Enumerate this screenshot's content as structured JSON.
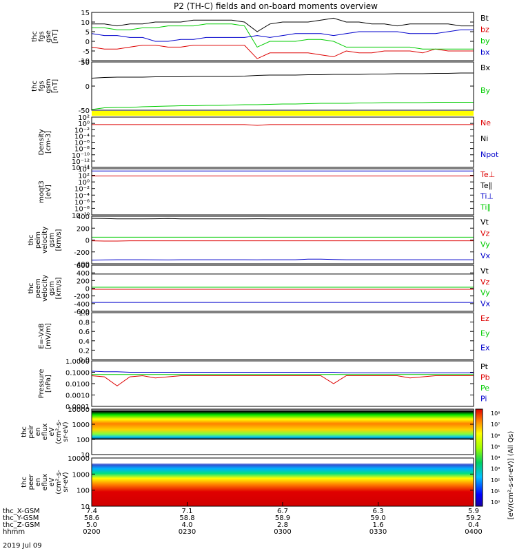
{
  "title": "P2 (TH-C) fields and on-board moments overview",
  "colors": {
    "black": "#000000",
    "red": "#dd0000",
    "green": "#00cc00",
    "blue": "#0000cc",
    "yellow": "#ffff00",
    "bar_bg": "#ffff00"
  },
  "chart_data": [
    {
      "type": "line",
      "name": "fgs_gse",
      "ylabel_lines": [
        "thc",
        "fgs",
        "gse",
        "[nT]"
      ],
      "ylim": [
        -10,
        15
      ],
      "ticks": [
        "15",
        "10",
        "5",
        "0",
        "-5",
        "-10"
      ],
      "legend": [
        {
          "label": "Bt",
          "color": "#000000"
        },
        {
          "label": "bz",
          "color": "#dd0000"
        },
        {
          "label": "by",
          "color": "#00cc00"
        },
        {
          "label": "bx",
          "color": "#0000cc"
        }
      ],
      "series": [
        {
          "name": "Bt",
          "values": [
            9,
            9,
            8,
            9,
            9,
            10,
            10,
            10,
            11,
            11,
            11,
            11,
            10,
            5,
            9,
            10,
            10,
            10,
            11,
            12,
            10,
            10,
            9,
            9,
            8,
            9,
            9,
            9,
            9,
            8,
            8
          ]
        },
        {
          "name": "bz",
          "values": [
            -3,
            -4,
            -4,
            -3,
            -2,
            -2,
            -3,
            -3,
            -2,
            -2,
            -2,
            -2,
            -2,
            -9,
            -6,
            -6,
            -6,
            -6,
            -7,
            -8,
            -5,
            -6,
            -6,
            -5,
            -5,
            -5,
            -6,
            -4,
            -5,
            -5,
            -5
          ]
        },
        {
          "name": "by",
          "values": [
            7,
            7,
            6,
            6,
            7,
            7,
            8,
            8,
            8,
            9,
            9,
            9,
            8,
            -3,
            0,
            0,
            0,
            1,
            1,
            0,
            -3,
            -3,
            -3,
            -3,
            -3,
            -3,
            -4,
            -4,
            -4,
            -4,
            -4
          ]
        },
        {
          "name": "bx",
          "values": [
            4,
            3,
            3,
            2,
            2,
            0,
            0,
            1,
            1,
            2,
            2,
            2,
            2,
            3,
            2,
            3,
            4,
            4,
            4,
            3,
            4,
            5,
            5,
            5,
            5,
            4,
            4,
            4,
            5,
            6,
            6
          ]
        }
      ]
    },
    {
      "type": "line",
      "name": "fgs_gsm",
      "ylabel_lines": [
        "thc",
        "fgs",
        "gsm",
        "[nT]"
      ],
      "ylim": [
        -80,
        60
      ],
      "ticks": [
        "50",
        "0",
        "-50"
      ],
      "legend": [
        {
          "label": "Bx",
          "color": "#000000"
        },
        {
          "label": "By",
          "color": "#00cc00"
        }
      ],
      "series": [
        {
          "name": "Bx",
          "values": [
            13,
            15,
            16,
            16,
            16,
            17,
            17,
            17,
            18,
            18,
            18,
            18,
            19,
            21,
            22,
            22,
            22,
            23,
            23,
            24,
            24,
            24,
            25,
            25,
            26,
            26,
            26,
            27,
            27,
            28,
            28
          ]
        },
        {
          "name": "By",
          "values": [
            -78,
            -73,
            -72,
            -72,
            -70,
            -69,
            -68,
            -67,
            -67,
            -66,
            -66,
            -65,
            -64,
            -64,
            -63,
            -62,
            -62,
            -61,
            -60,
            -60,
            -60,
            -59,
            -59,
            -58,
            -58,
            -58,
            -58,
            -57,
            -57,
            -57,
            -57
          ]
        }
      ]
    },
    {
      "type": "line",
      "name": "density",
      "ylabel_lines": [
        "Density",
        "[cm-3]"
      ],
      "ylim": [
        -16,
        4
      ],
      "log": true,
      "ticks": [
        "10²",
        "10⁰",
        "10⁻²",
        "10⁻⁴",
        "10⁻⁶",
        "10⁻⁸",
        "10⁻¹⁰",
        "10⁻¹²",
        "10⁻¹⁴"
      ],
      "legend": [
        {
          "label": "Ne",
          "color": "#dd0000"
        },
        {
          "label": "Ni",
          "color": "#000000"
        },
        {
          "label": "Npot",
          "color": "#0000cc"
        }
      ],
      "series": [
        {
          "name": "Ne",
          "log10_values": [
            1.0,
            1.0,
            1.0,
            1.0,
            1.0,
            1.0,
            1.0,
            1.0,
            1.0,
            1.0,
            1.0,
            1.0,
            1.0,
            0.7,
            1.0,
            1.0,
            1.0,
            1.0,
            1.0,
            1.0,
            1.0,
            1.0,
            1.0,
            1.0,
            1.0,
            1.0,
            1.0,
            1.0,
            1.0,
            1.0,
            1.0
          ]
        }
      ]
    },
    {
      "type": "line",
      "name": "moqt3",
      "ylabel_lines": [
        "moqt3",
        "[eV]"
      ],
      "ylim": [
        -12,
        4
      ],
      "log": true,
      "ticks": [
        "10⁴",
        "10²",
        "10⁰",
        "10⁻²",
        "10⁻⁴",
        "10⁻⁶",
        "10⁻⁸",
        "10⁻¹⁰"
      ],
      "legend": [
        {
          "label": "Te⊥",
          "color": "#dd0000"
        },
        {
          "label": "Te∥",
          "color": "#000000"
        },
        {
          "label": "Ti⊥",
          "color": "#0000cc"
        },
        {
          "label": "Ti∥",
          "color": "#00cc00"
        }
      ],
      "series": [
        {
          "name": "Ti",
          "log10_values": [
            3.2,
            3.2,
            3.2,
            3.2,
            3.2,
            3.2,
            3.2,
            3.2,
            3.2,
            3.2,
            3.2,
            3.2,
            3.2,
            3.2,
            3.2,
            3.2,
            3.2,
            3.2,
            3.2,
            3.2,
            3.2,
            3.2,
            3.2,
            3.2,
            3.2,
            3.2,
            3.2,
            3.2,
            3.2,
            3.2,
            3.2
          ]
        },
        {
          "name": "Te",
          "log10_values": [
            1.5,
            1.5,
            1.5,
            1.5,
            1.5,
            1.5,
            1.5,
            1.5,
            1.5,
            1.5,
            1.5,
            1.5,
            1.5,
            1.5,
            1.5,
            1.5,
            1.5,
            1.5,
            1.5,
            1.5,
            1.5,
            1.5,
            1.5,
            1.5,
            1.5,
            1.5,
            1.5,
            1.5,
            1.5,
            1.5,
            1.5
          ]
        }
      ]
    },
    {
      "type": "line",
      "name": "peim_velocity",
      "ylabel_lines": [
        "thc",
        "peim",
        "velocity",
        "gsm",
        "[km/s]"
      ],
      "ylim": [
        -480,
        450
      ],
      "ticks": [
        "400",
        "200",
        "0",
        "-200",
        "-400"
      ],
      "legend": [
        {
          "label": "Vt",
          "color": "#000000"
        },
        {
          "label": "Vz",
          "color": "#dd0000"
        },
        {
          "label": "Vy",
          "color": "#00cc00"
        },
        {
          "label": "Vx",
          "color": "#0000cc"
        }
      ],
      "series": [
        {
          "name": "Vt",
          "values": [
            410,
            405,
            400,
            400,
            400,
            402,
            405,
            400,
            400,
            400,
            400,
            400,
            400,
            402,
            400,
            400,
            400,
            400,
            400,
            400,
            400,
            400,
            400,
            400,
            400,
            400,
            400,
            400,
            400,
            400,
            400
          ]
        },
        {
          "name": "Vz",
          "values": [
            -30,
            -35,
            -35,
            -30,
            -30,
            -30,
            -30,
            -30,
            -30,
            -30,
            -30,
            -30,
            -30,
            -30,
            -30,
            -30,
            -30,
            -30,
            -30,
            -30,
            -30,
            -30,
            -30,
            -30,
            -30,
            -30,
            -30,
            -30,
            -30,
            -30,
            -30
          ]
        },
        {
          "name": "Vy",
          "values": [
            40,
            40,
            40,
            40,
            40,
            40,
            40,
            40,
            40,
            40,
            40,
            40,
            40,
            40,
            40,
            40,
            40,
            40,
            40,
            40,
            40,
            40,
            40,
            40,
            40,
            40,
            40,
            40,
            40,
            40,
            40
          ]
        },
        {
          "name": "Vx",
          "values": [
            -410,
            -405,
            -400,
            -400,
            -400,
            -402,
            -405,
            -400,
            -400,
            -400,
            -400,
            -400,
            -400,
            -402,
            -400,
            -400,
            -400,
            -390,
            -390,
            -395,
            -400,
            -400,
            -400,
            -400,
            -400,
            -400,
            -400,
            -400,
            -400,
            -400,
            -400
          ]
        }
      ]
    },
    {
      "type": "line",
      "name": "peem_velocity",
      "ylabel_lines": [
        "thc",
        "peem",
        "velocity",
        "gsm",
        "[km/s]"
      ],
      "ylim": [
        -650,
        650
      ],
      "ticks": [
        "600",
        "400",
        "200",
        "0",
        "-200",
        "-400",
        "-600"
      ],
      "legend": [
        {
          "label": "Vt",
          "color": "#000000"
        },
        {
          "label": "Vz",
          "color": "#dd0000"
        },
        {
          "label": "Vy",
          "color": "#00cc00"
        },
        {
          "label": "Vx",
          "color": "#0000cc"
        }
      ],
      "series": [
        {
          "name": "Vt",
          "values": [
            400,
            400,
            400,
            400,
            400,
            400,
            400,
            400,
            400,
            400,
            400,
            400,
            400,
            400,
            400,
            400,
            400,
            400,
            400,
            400,
            400,
            400,
            400,
            400,
            400,
            400,
            400,
            400,
            400,
            400,
            400
          ]
        },
        {
          "name": "Vz",
          "values": [
            -30,
            -30,
            -30,
            -30,
            -30,
            -30,
            -30,
            -30,
            -30,
            -30,
            -30,
            -30,
            -30,
            -30,
            -30,
            -30,
            -30,
            -30,
            -30,
            -30,
            -30,
            -30,
            -30,
            -30,
            -30,
            -30,
            -30,
            -30,
            -30,
            -30,
            -30
          ]
        },
        {
          "name": "Vy",
          "values": [
            30,
            30,
            30,
            30,
            30,
            30,
            30,
            30,
            30,
            30,
            30,
            30,
            30,
            30,
            30,
            30,
            30,
            30,
            30,
            30,
            30,
            30,
            30,
            30,
            30,
            30,
            30,
            30,
            30,
            30,
            30
          ]
        },
        {
          "name": "Vx",
          "values": [
            -400,
            -400,
            -400,
            -400,
            -400,
            -400,
            -400,
            -400,
            -400,
            -400,
            -400,
            -400,
            -400,
            -400,
            -400,
            -400,
            -400,
            -400,
            -400,
            -400,
            -400,
            -400,
            -400,
            -400,
            -400,
            -400,
            -400,
            -400,
            -400,
            -400,
            -400
          ]
        }
      ]
    },
    {
      "type": "line",
      "name": "efield",
      "ylabel_lines": [
        "E=-VxB",
        "[mV/m]"
      ],
      "ylim": [
        0.0,
        1.0
      ],
      "ticks": [
        "1.0",
        "0.8",
        "0.6",
        "0.4",
        "0.2",
        "0.0"
      ],
      "legend": [
        {
          "label": "Ez",
          "color": "#dd0000"
        },
        {
          "label": "Ey",
          "color": "#00cc00"
        },
        {
          "label": "Ex",
          "color": "#0000cc"
        }
      ],
      "series": []
    },
    {
      "type": "line",
      "name": "pressure",
      "ylabel_lines": [
        "Pressure",
        "[nPa]"
      ],
      "ylim": [
        -4,
        0
      ],
      "log": true,
      "ticks": [
        "1.0000",
        "0.1000",
        "0.0100",
        "0.0010",
        "0.0001"
      ],
      "legend": [
        {
          "label": "Pt",
          "color": "#000000"
        },
        {
          "label": "Pb",
          "color": "#dd0000"
        },
        {
          "label": "Pe",
          "color": "#00cc00"
        },
        {
          "label": "Pi",
          "color": "#0000cc"
        }
      ],
      "series": [
        {
          "name": "Pi",
          "log10_values": [
            -0.9,
            -0.95,
            -0.95,
            -1.0,
            -1.0,
            -1.0,
            -1.0,
            -1.0,
            -1.0,
            -1.0,
            -1.0,
            -1.0,
            -1.0,
            -1.0,
            -1.0,
            -1.0,
            -1.0,
            -1.0,
            -1.0,
            -1.0,
            -1.05,
            -1.05,
            -1.05,
            -1.05,
            -1.05,
            -1.05,
            -1.05,
            -1.05,
            -1.05,
            -1.05,
            -1.05
          ]
        },
        {
          "name": "Pe",
          "log10_values": [
            -1.2,
            -1.2,
            -1.2,
            -1.2,
            -1.2,
            -1.2,
            -1.2,
            -1.2,
            -1.2,
            -1.2,
            -1.2,
            -1.2,
            -1.2,
            -1.2,
            -1.2,
            -1.2,
            -1.2,
            -1.2,
            -1.2,
            -1.2,
            -1.2,
            -1.2,
            -1.2,
            -1.2,
            -1.2,
            -1.2,
            -1.2,
            -1.2,
            -1.2,
            -1.2,
            -1.2
          ]
        },
        {
          "name": "Pb",
          "log10_values": [
            -1.3,
            -1.4,
            -2.2,
            -1.4,
            -1.3,
            -1.5,
            -1.4,
            -1.3,
            -1.3,
            -1.3,
            -1.3,
            -1.3,
            -1.3,
            -1.3,
            -1.3,
            -1.3,
            -1.3,
            -1.3,
            -1.3,
            -2.0,
            -1.3,
            -1.3,
            -1.3,
            -1.3,
            -1.3,
            -1.5,
            -1.4,
            -1.3,
            -1.3,
            -1.3,
            -1.3
          ]
        }
      ]
    },
    {
      "type": "heatmap",
      "name": "peir_en_eflux",
      "ylabel_lines": [
        "thc",
        "peir",
        "en",
        "eflux",
        "eV",
        "(cm²-s-",
        "sr-eV)"
      ],
      "ylim": [
        5,
        15000
      ],
      "log": true,
      "ticks": [
        "10000",
        "1000",
        "100",
        "10"
      ],
      "band": {
        "low": 80,
        "high": 5000,
        "peak": 500
      }
    },
    {
      "type": "heatmap",
      "name": "peer_en_eflux",
      "ylabel_lines": [
        "thc",
        "peer",
        "en",
        "eflux",
        "eV",
        "(cm²-s-",
        "sr-eV)"
      ],
      "ylim": [
        5,
        15000
      ],
      "log": true,
      "ticks": [
        "10000",
        "1000",
        "100",
        "10"
      ],
      "band": {
        "low": 5,
        "high": 3000,
        "peak": 20
      }
    }
  ],
  "colorbar": {
    "ticks": [
      "10⁸",
      "10⁷",
      "10⁶",
      "10⁵",
      "10⁴",
      "10³",
      "10²",
      "10¹",
      "10⁰"
    ],
    "label": "[eV/(cm²-s-sr-eV)] (All Qs)"
  },
  "xaxis": {
    "rows": [
      {
        "label": "thc_X-GSM",
        "values": [
          "7.4",
          "7.1",
          "6.7",
          "6.3",
          "5.9"
        ]
      },
      {
        "label": "thc_Y-GSM",
        "values": [
          "58.6",
          "58.8",
          "58.9",
          "59.0",
          "59.2"
        ]
      },
      {
        "label": "thc_Z-GSM",
        "values": [
          "5.0",
          "4.0",
          "2.8",
          "1.6",
          "0.4"
        ]
      },
      {
        "label": "hhmm",
        "values": [
          "0200",
          "0230",
          "0300",
          "0330",
          "0400"
        ]
      }
    ],
    "date": "2019 Jul 09"
  }
}
